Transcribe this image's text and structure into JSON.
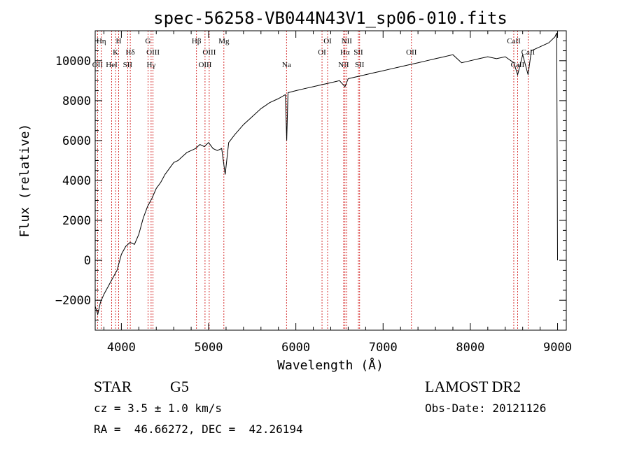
{
  "chart_data": {
    "type": "line",
    "title": "spec-56258-VB044N43V1_sp06-010.fits",
    "xlabel": "Wavelength (Å)",
    "ylabel": "Flux (relative)",
    "xlim": [
      3700,
      9100
    ],
    "ylim": [
      -3500,
      11500
    ],
    "x_ticks": [
      4000,
      5000,
      6000,
      7000,
      8000,
      9000
    ],
    "y_ticks": [
      -2000,
      0,
      2000,
      4000,
      6000,
      8000,
      10000
    ],
    "x_tick_labels": [
      "4000",
      "5000",
      "6000",
      "7000",
      "8000",
      "9000"
    ],
    "y_tick_labels": [
      "−2000",
      "0",
      "2000",
      "4000",
      "6000",
      "8000",
      "10000"
    ],
    "grid": false,
    "series": [
      {
        "line_color": "#000000",
        "points": [
          [
            3700,
            -2300
          ],
          [
            3730,
            -2700
          ],
          [
            3760,
            -2100
          ],
          [
            3800,
            -1700
          ],
          [
            3850,
            -1300
          ],
          [
            3900,
            -900
          ],
          [
            3950,
            -500
          ],
          [
            4000,
            300
          ],
          [
            4050,
            700
          ],
          [
            4100,
            900
          ],
          [
            4150,
            800
          ],
          [
            4200,
            1300
          ],
          [
            4250,
            2100
          ],
          [
            4300,
            2700
          ],
          [
            4350,
            3100
          ],
          [
            4400,
            3600
          ],
          [
            4450,
            3900
          ],
          [
            4500,
            4300
          ],
          [
            4550,
            4600
          ],
          [
            4600,
            4900
          ],
          [
            4650,
            5000
          ],
          [
            4700,
            5200
          ],
          [
            4750,
            5400
          ],
          [
            4800,
            5500
          ],
          [
            4850,
            5600
          ],
          [
            4900,
            5800
          ],
          [
            4950,
            5700
          ],
          [
            5000,
            5900
          ],
          [
            5050,
            5600
          ],
          [
            5100,
            5500
          ],
          [
            5150,
            5600
          ],
          [
            5190,
            4300
          ],
          [
            5230,
            5900
          ],
          [
            5300,
            6300
          ],
          [
            5400,
            6800
          ],
          [
            5500,
            7200
          ],
          [
            5600,
            7600
          ],
          [
            5700,
            7900
          ],
          [
            5800,
            8100
          ],
          [
            5880,
            8300
          ],
          [
            5895,
            6000
          ],
          [
            5910,
            8400
          ],
          [
            6000,
            8500
          ],
          [
            6100,
            8600
          ],
          [
            6200,
            8700
          ],
          [
            6300,
            8800
          ],
          [
            6400,
            8900
          ],
          [
            6500,
            9000
          ],
          [
            6563,
            8700
          ],
          [
            6600,
            9100
          ],
          [
            6700,
            9200
          ],
          [
            6800,
            9300
          ],
          [
            6900,
            9400
          ],
          [
            7000,
            9500
          ],
          [
            7100,
            9600
          ],
          [
            7200,
            9700
          ],
          [
            7300,
            9800
          ],
          [
            7400,
            9900
          ],
          [
            7500,
            10000
          ],
          [
            7600,
            10100
          ],
          [
            7700,
            10200
          ],
          [
            7800,
            10300
          ],
          [
            7900,
            9900
          ],
          [
            8000,
            10000
          ],
          [
            8100,
            10100
          ],
          [
            8200,
            10200
          ],
          [
            8300,
            10100
          ],
          [
            8400,
            10200
          ],
          [
            8498,
            9900
          ],
          [
            8542,
            9300
          ],
          [
            8600,
            10300
          ],
          [
            8662,
            9300
          ],
          [
            8700,
            10500
          ],
          [
            8800,
            10700
          ],
          [
            8900,
            10900
          ],
          [
            8970,
            11200
          ],
          [
            8990,
            11400
          ],
          [
            9000,
            0
          ]
        ]
      }
    ],
    "line_markers": [
      {
        "wavelength": 3727,
        "label": "OII",
        "row": 3
      },
      {
        "wavelength": 3770,
        "label": "Hη",
        "row": 1
      },
      {
        "wavelength": 3889,
        "label": "HeI",
        "row": 3
      },
      {
        "wavelength": 3934,
        "label": "K",
        "row": 2
      },
      {
        "wavelength": 3969,
        "label": "H",
        "row": 1
      },
      {
        "wavelength": 4072,
        "label": "SII",
        "row": 3
      },
      {
        "wavelength": 4102,
        "label": "Hδ",
        "row": 2
      },
      {
        "wavelength": 4305,
        "label": "G",
        "row": 1
      },
      {
        "wavelength": 4341,
        "label": "Hγ",
        "row": 3
      },
      {
        "wavelength": 4363,
        "label": "OIII",
        "row": 2
      },
      {
        "wavelength": 4861,
        "label": "Hβ",
        "row": 1
      },
      {
        "wavelength": 4959,
        "label": "OIII",
        "row": 3
      },
      {
        "wavelength": 5007,
        "label": "OIII",
        "row": 2
      },
      {
        "wavelength": 5175,
        "label": "Mg",
        "row": 1
      },
      {
        "wavelength": 5893,
        "label": "Na",
        "row": 3
      },
      {
        "wavelength": 6300,
        "label": "OI",
        "row": 2
      },
      {
        "wavelength": 6364,
        "label": "OI",
        "row": 1
      },
      {
        "wavelength": 6548,
        "label": "NII",
        "row": 3
      },
      {
        "wavelength": 6563,
        "label": "Hα",
        "row": 2
      },
      {
        "wavelength": 6583,
        "label": "NII",
        "row": 1
      },
      {
        "wavelength": 6717,
        "label": "SII",
        "row": 2
      },
      {
        "wavelength": 6731,
        "label": "SII",
        "row": 3
      },
      {
        "wavelength": 7325,
        "label": "OII",
        "row": 2
      },
      {
        "wavelength": 8498,
        "label": "CaII",
        "row": 1
      },
      {
        "wavelength": 8542,
        "label": "CaII",
        "row": 3
      },
      {
        "wavelength": 8662,
        "label": "CaII",
        "row": 2
      }
    ],
    "marker_color": "#cc0000"
  },
  "footer": {
    "object_type": "STAR",
    "subclass": "G5",
    "cz": "cz = 3.5 ± 1.0 km/s",
    "coords": "RA =  46.66272, DEC =  42.26194",
    "survey": "LAMOST DR2",
    "obs_date": "Obs-Date: 20121126"
  }
}
